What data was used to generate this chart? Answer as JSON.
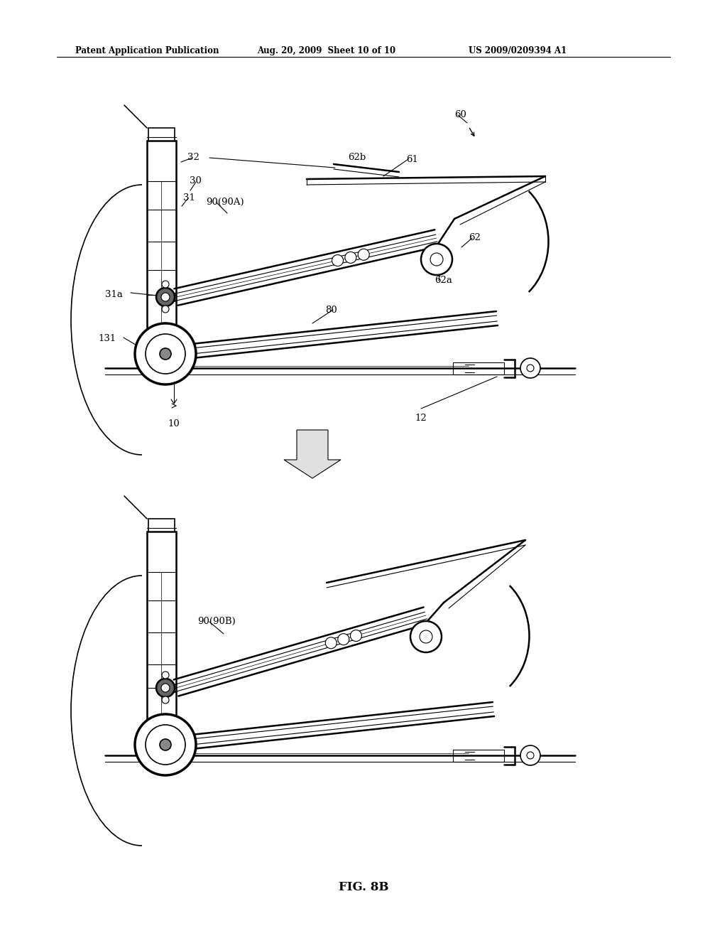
{
  "fig_width": 10.24,
  "fig_height": 13.2,
  "dpi": 100,
  "bg_color": "#ffffff",
  "header_left": "Patent Application Publication",
  "header_mid": "Aug. 20, 2009  Sheet 10 of 10",
  "header_right": "US 2009/0209394 A1",
  "fig_label": "FIG. 8B",
  "lc": "#000000"
}
